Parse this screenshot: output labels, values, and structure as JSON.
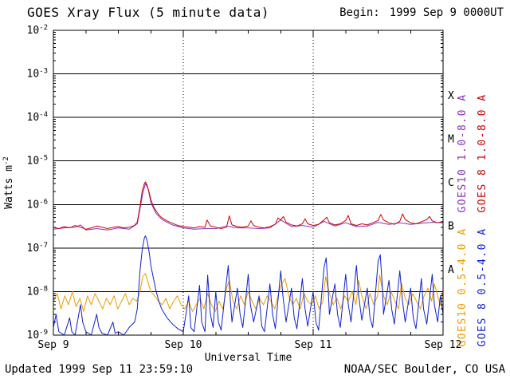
{
  "page": {
    "title": "GOES Xray Flux (5 minute data)",
    "begin_label": "Begin:",
    "begin_value": "1999 Sep 9 0000UT",
    "updated": "Updated 1999 Sep 11 23:59:10",
    "credit": "NOAA/SEC Boulder, CO USA"
  },
  "chart_data": {
    "type": "line",
    "title": "GOES Xray Flux (5 minute data)",
    "begin": "1999 Sep 9 0000UT",
    "xlabel": "Universal Time",
    "ylabel": "Watts m^-2",
    "y_scale": "log",
    "x_unit": "hours since Sep 9 0000UT",
    "x_range": [
      0,
      72
    ],
    "y_range": [
      1e-09,
      0.01
    ],
    "x_ticks": [
      {
        "hour": 0,
        "label": "Sep 9"
      },
      {
        "hour": 24,
        "label": "Sep 10"
      },
      {
        "hour": 48,
        "label": "Sep 11"
      },
      {
        "hour": 72,
        "label": "Sep 12"
      }
    ],
    "x_minor_tick_hours": 6,
    "day_lines_hours": [
      24,
      48
    ],
    "y_tick_exponents": [
      -2,
      -3,
      -4,
      -5,
      -6,
      -7,
      -8,
      -9
    ],
    "grid_exponents": [
      -3,
      -4,
      -5,
      -6,
      -7,
      -8
    ],
    "flare_classes": [
      {
        "label": "X",
        "exponent_mid": -3.5
      },
      {
        "label": "M",
        "exponent_mid": -4.5
      },
      {
        "label": "C",
        "exponent_mid": -5.5
      },
      {
        "label": "B",
        "exponent_mid": -6.5
      },
      {
        "label": "A",
        "exponent_mid": -7.5
      }
    ],
    "legend": [
      {
        "text": "GOES10 1.0-8.0 A",
        "color": "#8833bb",
        "column": "inner",
        "half": "upper"
      },
      {
        "text": "GOES 8 1.0-8.0 A",
        "color": "#cc0000",
        "column": "outer",
        "half": "upper"
      },
      {
        "text": "GOES10 0.5-4.0 A",
        "color": "#ee9a00",
        "column": "inner",
        "half": "lower"
      },
      {
        "text": "GOES 8 0.5-4.0 A",
        "color": "#1122cc",
        "column": "outer",
        "half": "lower"
      }
    ],
    "series": [
      {
        "name": "GOES10 1.0-8.0 A",
        "color": "#8833bb",
        "x_hours": [
          0,
          2,
          4,
          5,
          6,
          8,
          10,
          12,
          14,
          15.5,
          16,
          16.5,
          17,
          17.5,
          18,
          19,
          20,
          21,
          22,
          24,
          26,
          28,
          30,
          32,
          34,
          36,
          38,
          40,
          42,
          44,
          46,
          48,
          50,
          52,
          54,
          56,
          58,
          60,
          62,
          64,
          66,
          68,
          70,
          72
        ],
        "flux": [
          2.7e-07,
          2.9e-07,
          3e-07,
          3.4e-07,
          2.6e-07,
          2.8e-07,
          2.6e-07,
          2.9e-07,
          2.7e-07,
          3.6e-07,
          8e-07,
          1.8e-06,
          3e-06,
          2.3e-06,
          1.1e-06,
          6.2e-07,
          4.6e-07,
          3.9e-07,
          3.4e-07,
          2.9e-07,
          2.7e-07,
          2.8e-07,
          2.8e-07,
          3.2e-07,
          2.9e-07,
          2.9e-07,
          2.8e-07,
          2.9e-07,
          4.4e-07,
          3.1e-07,
          3.3e-07,
          3e-07,
          4.1e-07,
          3.2e-07,
          3.8e-07,
          3.1e-07,
          3.2e-07,
          3.9e-07,
          3.5e-07,
          3.8e-07,
          3.5e-07,
          3.7e-07,
          3.9e-07,
          3.8e-07
        ]
      },
      {
        "name": "GOES10 0.5-4.0 A",
        "color": "#ee9a00",
        "x_hours": [
          0,
          0.7,
          1.4,
          2.1,
          2.8,
          3.5,
          4.2,
          4.9,
          5.6,
          6.3,
          7,
          7.7,
          8.4,
          9.1,
          9.8,
          10.5,
          11.2,
          11.9,
          12.6,
          13.3,
          14,
          14.7,
          15.4,
          16,
          16.5,
          17,
          17.5,
          18,
          18.7,
          19.4,
          20.1,
          20.8,
          21.5,
          22.2,
          22.9,
          23.6,
          24.3,
          25,
          25.7,
          26.4,
          27.1,
          27.8,
          28.5,
          29.2,
          29.9,
          30.6,
          31.3,
          32,
          32.5,
          33.2,
          33.9,
          34.6,
          35.3,
          36,
          36.7,
          37.4,
          38.1,
          38.8,
          39.5,
          40.2,
          40.9,
          41.6,
          42.1,
          42.8,
          43.5,
          44.2,
          44.9,
          45.6,
          46.3,
          47,
          47.7,
          48.4,
          49.1,
          49.8,
          50.3,
          51,
          51.7,
          52.4,
          53.1,
          53.8,
          54.5,
          55.2,
          55.9,
          56.4,
          57.1,
          57.8,
          58.5,
          59.2,
          59.9,
          60.3,
          61,
          61.7,
          62.4,
          63.1,
          63.8,
          64.3,
          65,
          65.7,
          66.4,
          67.1,
          67.8,
          68.5,
          69.2,
          69.9,
          70.4,
          71,
          71.5,
          72
        ],
        "flux": [
          6e-09,
          9e-09,
          4e-09,
          8e-09,
          5e-09,
          1e-08,
          4.5e-09,
          7e-09,
          3.5e-09,
          8e-09,
          5e-09,
          9e-09,
          6e-09,
          4e-09,
          7e-09,
          5e-09,
          8e-09,
          4e-09,
          6e-09,
          9e-09,
          5e-09,
          7e-09,
          6e-09,
          1e-08,
          2.2e-08,
          2.6e-08,
          1.6e-08,
          1e-08,
          8e-09,
          6e-09,
          5e-09,
          7e-09,
          4e-09,
          6e-09,
          8e-09,
          5e-09,
          4e-09,
          6e-09,
          3.5e-09,
          5e-09,
          7e-09,
          4e-09,
          9e-09,
          5e-09,
          3.5e-09,
          6e-09,
          4e-09,
          1.2e-08,
          1.8e-08,
          6e-09,
          4e-09,
          8e-09,
          5e-09,
          1e-08,
          6e-09,
          4e-09,
          7e-09,
          5e-09,
          8e-09,
          6e-09,
          4e-09,
          9e-09,
          1.4e-08,
          2e-08,
          8e-09,
          5e-09,
          7e-09,
          4e-09,
          9e-09,
          6e-09,
          5e-09,
          8e-09,
          4e-09,
          6e-09,
          2.2e-08,
          9e-09,
          5e-09,
          7e-09,
          4e-09,
          8e-09,
          6e-09,
          1e-08,
          5e-09,
          1.8e-08,
          7e-09,
          4e-09,
          9e-09,
          5e-09,
          8e-09,
          2.4e-08,
          8e-09,
          5e-09,
          1e-08,
          6e-09,
          4e-09,
          1.6e-08,
          7e-09,
          5e-09,
          9e-09,
          6e-09,
          4e-09,
          8e-09,
          1.2e-08,
          6e-09,
          1.5e-08,
          8e-09,
          5e-09,
          1e-08
        ]
      },
      {
        "name": "GOES 8 0.5-4.0 A",
        "color": "#1122cc",
        "x_hours": [
          0,
          0.5,
          1,
          2,
          3,
          3.4,
          4,
          5,
          5.4,
          6,
          7,
          8,
          8.4,
          9,
          10,
          11,
          11.4,
          12,
          13,
          14,
          15,
          15.5,
          16,
          16.4,
          16.8,
          17,
          17.3,
          17.7,
          18,
          18.5,
          19,
          19.5,
          20,
          21,
          22,
          23,
          24,
          25,
          25.4,
          26,
          27,
          27.4,
          28,
          28.5,
          29,
          29.5,
          30,
          30.5,
          31,
          32,
          32.3,
          32.7,
          33,
          34,
          34.5,
          35,
          36,
          36.4,
          37,
          38,
          38.5,
          39,
          40,
          40.5,
          41,
          42,
          42.4,
          43,
          44,
          44.5,
          45,
          46,
          46.5,
          47,
          48,
          48.5,
          49,
          50,
          50.4,
          50.8,
          51,
          52,
          52.5,
          53,
          54,
          54.5,
          55,
          56,
          56.4,
          57,
          58,
          58.5,
          59,
          60,
          60.4,
          60.8,
          61,
          62,
          62.5,
          63,
          64,
          64.5,
          65,
          66,
          66.5,
          67,
          68,
          68.4,
          69,
          70,
          70.4,
          71,
          71.5,
          72
        ],
        "flux": [
          1.5e-09,
          3e-09,
          1.2e-09,
          1e-09,
          2.5e-09,
          1.2e-09,
          1e-09,
          5e-09,
          2e-09,
          1.2e-09,
          1e-09,
          3e-09,
          1.5e-09,
          1.1e-09,
          1e-09,
          2e-09,
          1.1e-09,
          1.2e-09,
          1e-09,
          1.5e-09,
          2e-09,
          4e-09,
          3e-08,
          9e-08,
          1.7e-07,
          1.9e-07,
          1.5e-07,
          8e-08,
          4e-08,
          2e-08,
          1e-08,
          6e-09,
          4e-09,
          2.5e-09,
          1.8e-09,
          1.4e-09,
          1.2e-09,
          8e-09,
          1.5e-09,
          1.2e-09,
          1.4e-08,
          2e-09,
          1.2e-09,
          2.4e-08,
          3e-09,
          1.5e-09,
          1e-08,
          2e-09,
          1.3e-09,
          1.8e-08,
          4e-08,
          6e-09,
          2e-09,
          1.2e-08,
          3e-09,
          1.5e-09,
          2.5e-08,
          5e-09,
          2e-09,
          8e-09,
          1.6e-09,
          1.2e-09,
          1.5e-08,
          3e-09,
          1.4e-09,
          3e-08,
          8e-09,
          2e-09,
          1.2e-08,
          2.5e-09,
          1.4e-09,
          2e-08,
          4e-09,
          1.6e-09,
          1e-08,
          2e-09,
          1.3e-09,
          3.5e-08,
          6e-08,
          1e-08,
          3e-09,
          1.5e-08,
          3e-09,
          1.5e-09,
          2.5e-08,
          5e-09,
          2e-09,
          4e-08,
          8e-09,
          2.2e-09,
          1.2e-08,
          2.5e-09,
          1.5e-09,
          5e-08,
          7e-08,
          1.2e-08,
          3e-09,
          1.8e-08,
          4e-09,
          1.8e-09,
          3e-08,
          6e-09,
          2e-09,
          1.2e-08,
          2.5e-09,
          1.4e-09,
          2e-08,
          4e-09,
          1.8e-09,
          2.5e-08,
          5e-09,
          2e-09,
          8e-09,
          3e-09
        ]
      },
      {
        "name": "GOES 8 1.0-8.0 A",
        "color": "#cc0000",
        "x_hours": [
          0,
          1,
          2,
          3,
          4,
          5,
          6,
          7,
          8,
          9,
          10,
          11,
          12,
          13,
          14,
          15,
          15.5,
          16,
          16.4,
          16.8,
          17,
          17.3,
          17.7,
          18,
          18.5,
          19,
          19.5,
          20,
          21,
          22,
          23,
          24,
          25,
          26,
          27,
          28,
          28.4,
          29,
          30,
          31,
          32,
          32.5,
          33,
          34,
          35,
          36,
          36.5,
          37,
          38,
          39,
          40,
          41,
          41.5,
          42,
          42.5,
          43,
          44,
          45,
          46,
          46.5,
          47,
          48,
          49,
          50,
          50.5,
          51,
          52,
          53,
          54,
          54.5,
          55,
          56,
          57,
          58,
          59,
          60,
          60.5,
          61,
          62,
          63,
          64,
          64.5,
          65,
          66,
          67,
          68,
          69,
          69.5,
          70,
          71,
          72
        ],
        "flux": [
          3e-07,
          2.8e-07,
          3.1e-07,
          2.9e-07,
          3.3e-07,
          3e-07,
          2.7e-07,
          2.9e-07,
          3.2e-07,
          3e-07,
          2.8e-07,
          3e-07,
          3.1e-07,
          2.9e-07,
          3e-07,
          3.3e-07,
          4e-07,
          9e-07,
          2e-06,
          3e-06,
          3.3e-06,
          2.8e-06,
          1.9e-06,
          1.3e-06,
          9e-07,
          7e-07,
          5.8e-07,
          5e-07,
          4.2e-07,
          3.7e-07,
          3.3e-07,
          3.1e-07,
          3e-07,
          2.9e-07,
          3.1e-07,
          3e-07,
          4.4e-07,
          3.2e-07,
          3e-07,
          2.8e-07,
          3e-07,
          5.5e-07,
          3.4e-07,
          3.1e-07,
          3e-07,
          3.2e-07,
          4.2e-07,
          3.3e-07,
          3e-07,
          2.9e-07,
          3.1e-07,
          3.5e-07,
          4.9e-07,
          4.4e-07,
          5.3e-07,
          3.9e-07,
          3.4e-07,
          3.2e-07,
          3.6e-07,
          4.7e-07,
          3.6e-07,
          3.3e-07,
          3.5e-07,
          4.4e-07,
          5.1e-07,
          3.8e-07,
          3.4e-07,
          3.6e-07,
          4.3e-07,
          5.6e-07,
          3.6e-07,
          3.3e-07,
          3.6e-07,
          3.4e-07,
          3.8e-07,
          4.3e-07,
          5.9e-07,
          4.4e-07,
          3.8e-07,
          3.5e-07,
          4.1e-07,
          6.1e-07,
          4.5e-07,
          3.8e-07,
          3.6e-07,
          4e-07,
          4.5e-07,
          5.3e-07,
          4.2e-07,
          3.8e-07,
          4.1e-07
        ]
      }
    ]
  }
}
